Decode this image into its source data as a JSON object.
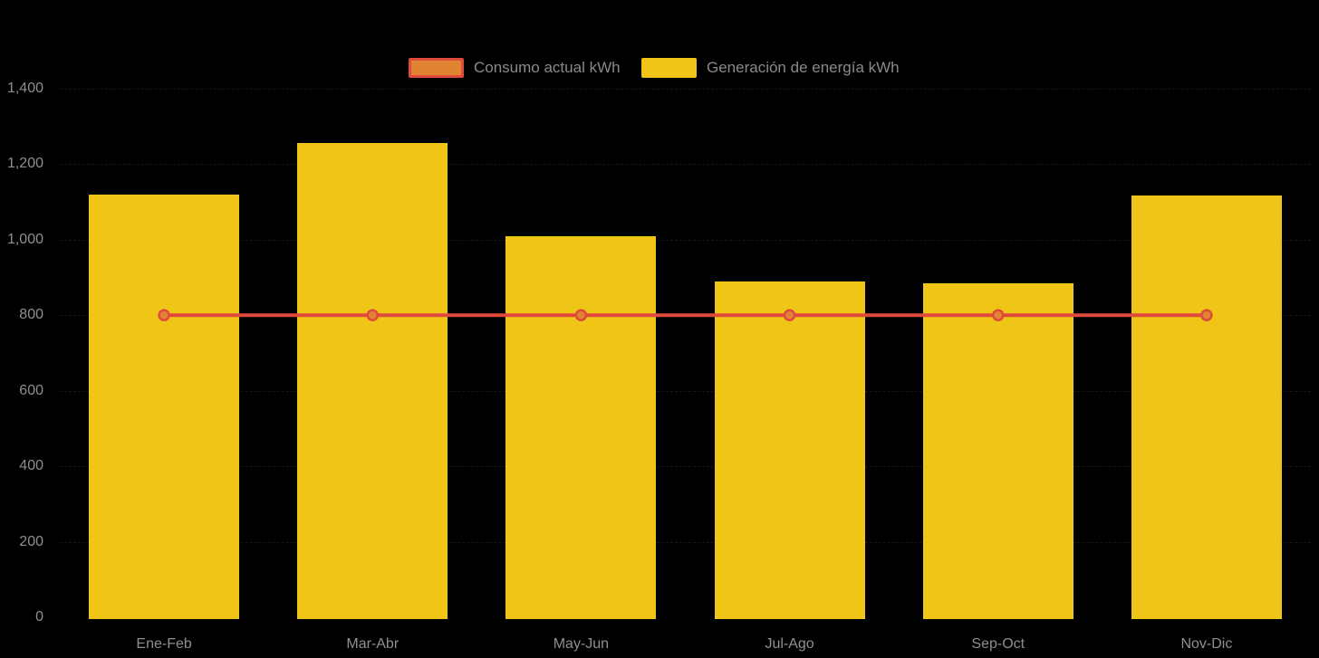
{
  "chart_data": {
    "type": "bar",
    "categories": [
      "Ene-Feb",
      "Mar-Abr",
      "May-Jun",
      "Jul-Ago",
      "Sep-Oct",
      "Nov-Dic"
    ],
    "series": [
      {
        "name": "Consumo actual kWh",
        "type": "line",
        "values": [
          800,
          800,
          800,
          800,
          800,
          800
        ],
        "color": "#E04A3C",
        "marker_fill": "#E08332",
        "marker": "circle"
      },
      {
        "name": "Generación de energía kWh",
        "type": "bar",
        "values": [
          1120,
          1255,
          1010,
          890,
          885,
          1118
        ],
        "color": "#EFC617"
      }
    ],
    "title": "",
    "xlabel": "",
    "ylabel": "",
    "ylim": [
      0,
      1400
    ],
    "ytick_labels": [
      "0",
      "200",
      "400",
      "600",
      "800",
      "1,000",
      "1,200",
      "1,400"
    ],
    "ytick_values": [
      0,
      200,
      400,
      600,
      800,
      1000,
      1200,
      1400
    ],
    "grid": false,
    "legend_position": "top-center",
    "background": "#000000",
    "axis_label_color": "#8F8F8F",
    "legend_text_color": "#8A8A8A"
  }
}
